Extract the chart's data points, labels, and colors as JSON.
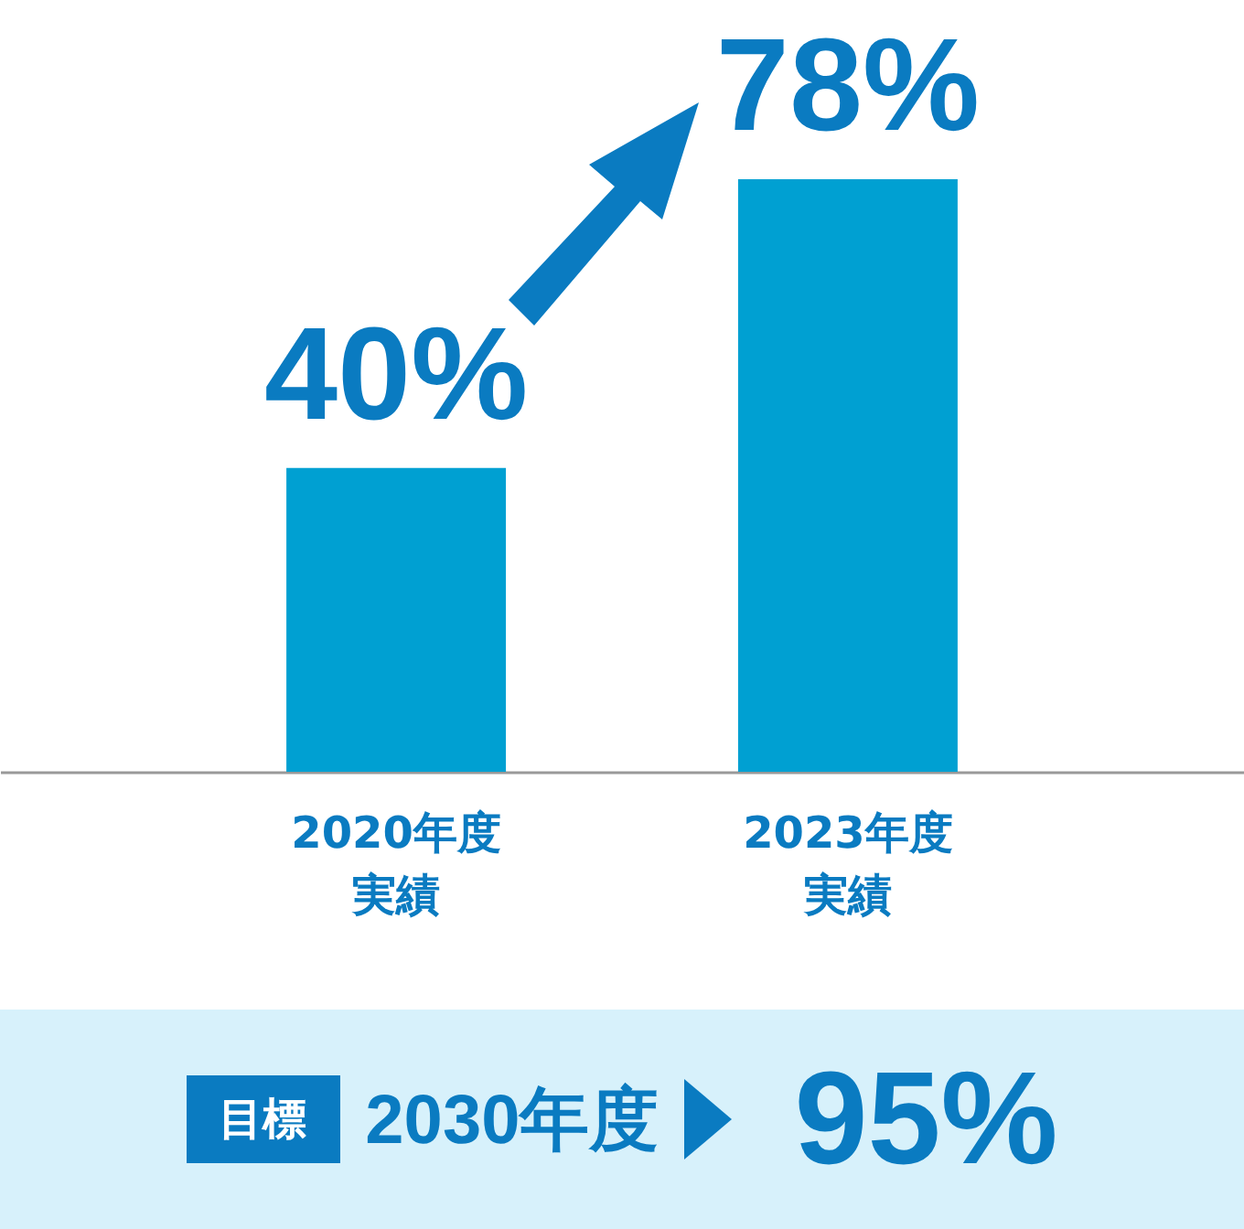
{
  "chart_data": {
    "type": "bar",
    "categories": [
      "2020年度実績",
      "2023年度実績"
    ],
    "values": [
      40,
      78
    ],
    "color": "#00a0d2",
    "value_labels": [
      "40%",
      "78%"
    ],
    "annotations": [
      "目標",
      "2030年度",
      "95%"
    ]
  }
}
